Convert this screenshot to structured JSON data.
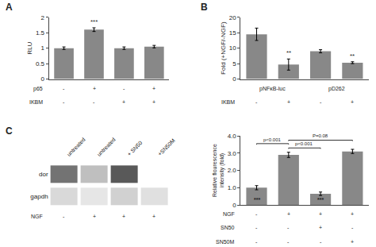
{
  "chart_data": [
    {
      "type": "bar",
      "label": "A",
      "ylabel": "RLU",
      "values": [
        1.0,
        1.6,
        1.0,
        1.05
      ],
      "errors": [
        0.04,
        0.06,
        0.04,
        0.04
      ],
      "color": "#888888",
      "ylim": [
        0,
        2.0
      ],
      "yticks": [
        0,
        0.5,
        1,
        1.5,
        2
      ],
      "grid": false,
      "significance": [
        null,
        "***",
        null,
        null
      ],
      "condition_rows": [
        {
          "name": "p65",
          "labels": [
            "-",
            "+",
            "-",
            "+"
          ]
        },
        {
          "name": "IKBM",
          "labels": [
            "-",
            "-",
            "+",
            "+"
          ]
        }
      ]
    },
    {
      "type": "bar",
      "label": "B",
      "ylabel": "Fold (+NGF/-NGF)",
      "values": [
        14.5,
        4.7,
        9.0,
        5.3
      ],
      "errors": [
        2.0,
        1.8,
        0.5,
        0.3
      ],
      "color": "#888888",
      "ylim": [
        0,
        20
      ],
      "yticks": [
        0,
        5,
        10,
        15,
        20
      ],
      "grid": false,
      "significance": [
        null,
        "**",
        null,
        "**"
      ],
      "groups": [
        "pNFκB-luc",
        "pD262"
      ],
      "condition_rows": [
        {
          "name": "IKBM",
          "labels": [
            "-",
            "+",
            "-",
            "+"
          ]
        }
      ]
    },
    {
      "type": "gel",
      "label": "C",
      "categories": [
        "untreated",
        "untreated",
        "+ SN50",
        "+SN50M"
      ],
      "rows": [
        {
          "name": "dor",
          "values": [
            0.45,
            0.75,
            0.35,
            1.0
          ]
        },
        {
          "name": "gapdh",
          "values": [
            0.85,
            0.9,
            0.82,
            0.88
          ]
        }
      ],
      "condition_rows": [
        {
          "name": "NGF",
          "labels": [
            "-",
            "+",
            "+",
            "+"
          ]
        }
      ]
    },
    {
      "type": "bar",
      "ylabel": "Relative flourescence\nintensity (fold)",
      "values": [
        1.0,
        2.9,
        0.65,
        3.1
      ],
      "errors": [
        0.12,
        0.15,
        0.1,
        0.12
      ],
      "color": "#888888",
      "ylim": [
        0,
        4.0
      ],
      "yticks": [
        0,
        {
          "value": 1,
          "label": "1.0"
        },
        {
          "value": 2,
          "label": "2.0"
        },
        {
          "value": 3,
          "label": "3.0"
        },
        {
          "value": 4,
          "label": "4.0"
        }
      ],
      "grid": false,
      "base_labels": [
        "***",
        null,
        "***",
        null
      ],
      "brackets": [
        {
          "from": 0,
          "to": 1,
          "y": 3.55,
          "text": "p<0.001"
        },
        {
          "from": 1,
          "to": 2,
          "y": 3.3,
          "text": "p<0.001"
        },
        {
          "from": 1,
          "to": 3,
          "y": 3.75,
          "text": "P=0.08"
        }
      ],
      "condition_rows": [
        {
          "name": "NGF",
          "labels": [
            "-",
            "+",
            "+",
            "+"
          ]
        },
        {
          "name": "SN50",
          "labels": [
            "-",
            "-",
            "+",
            "-"
          ]
        },
        {
          "name": "SN50M",
          "labels": [
            "-",
            "-",
            "-",
            "+"
          ]
        }
      ]
    }
  ]
}
